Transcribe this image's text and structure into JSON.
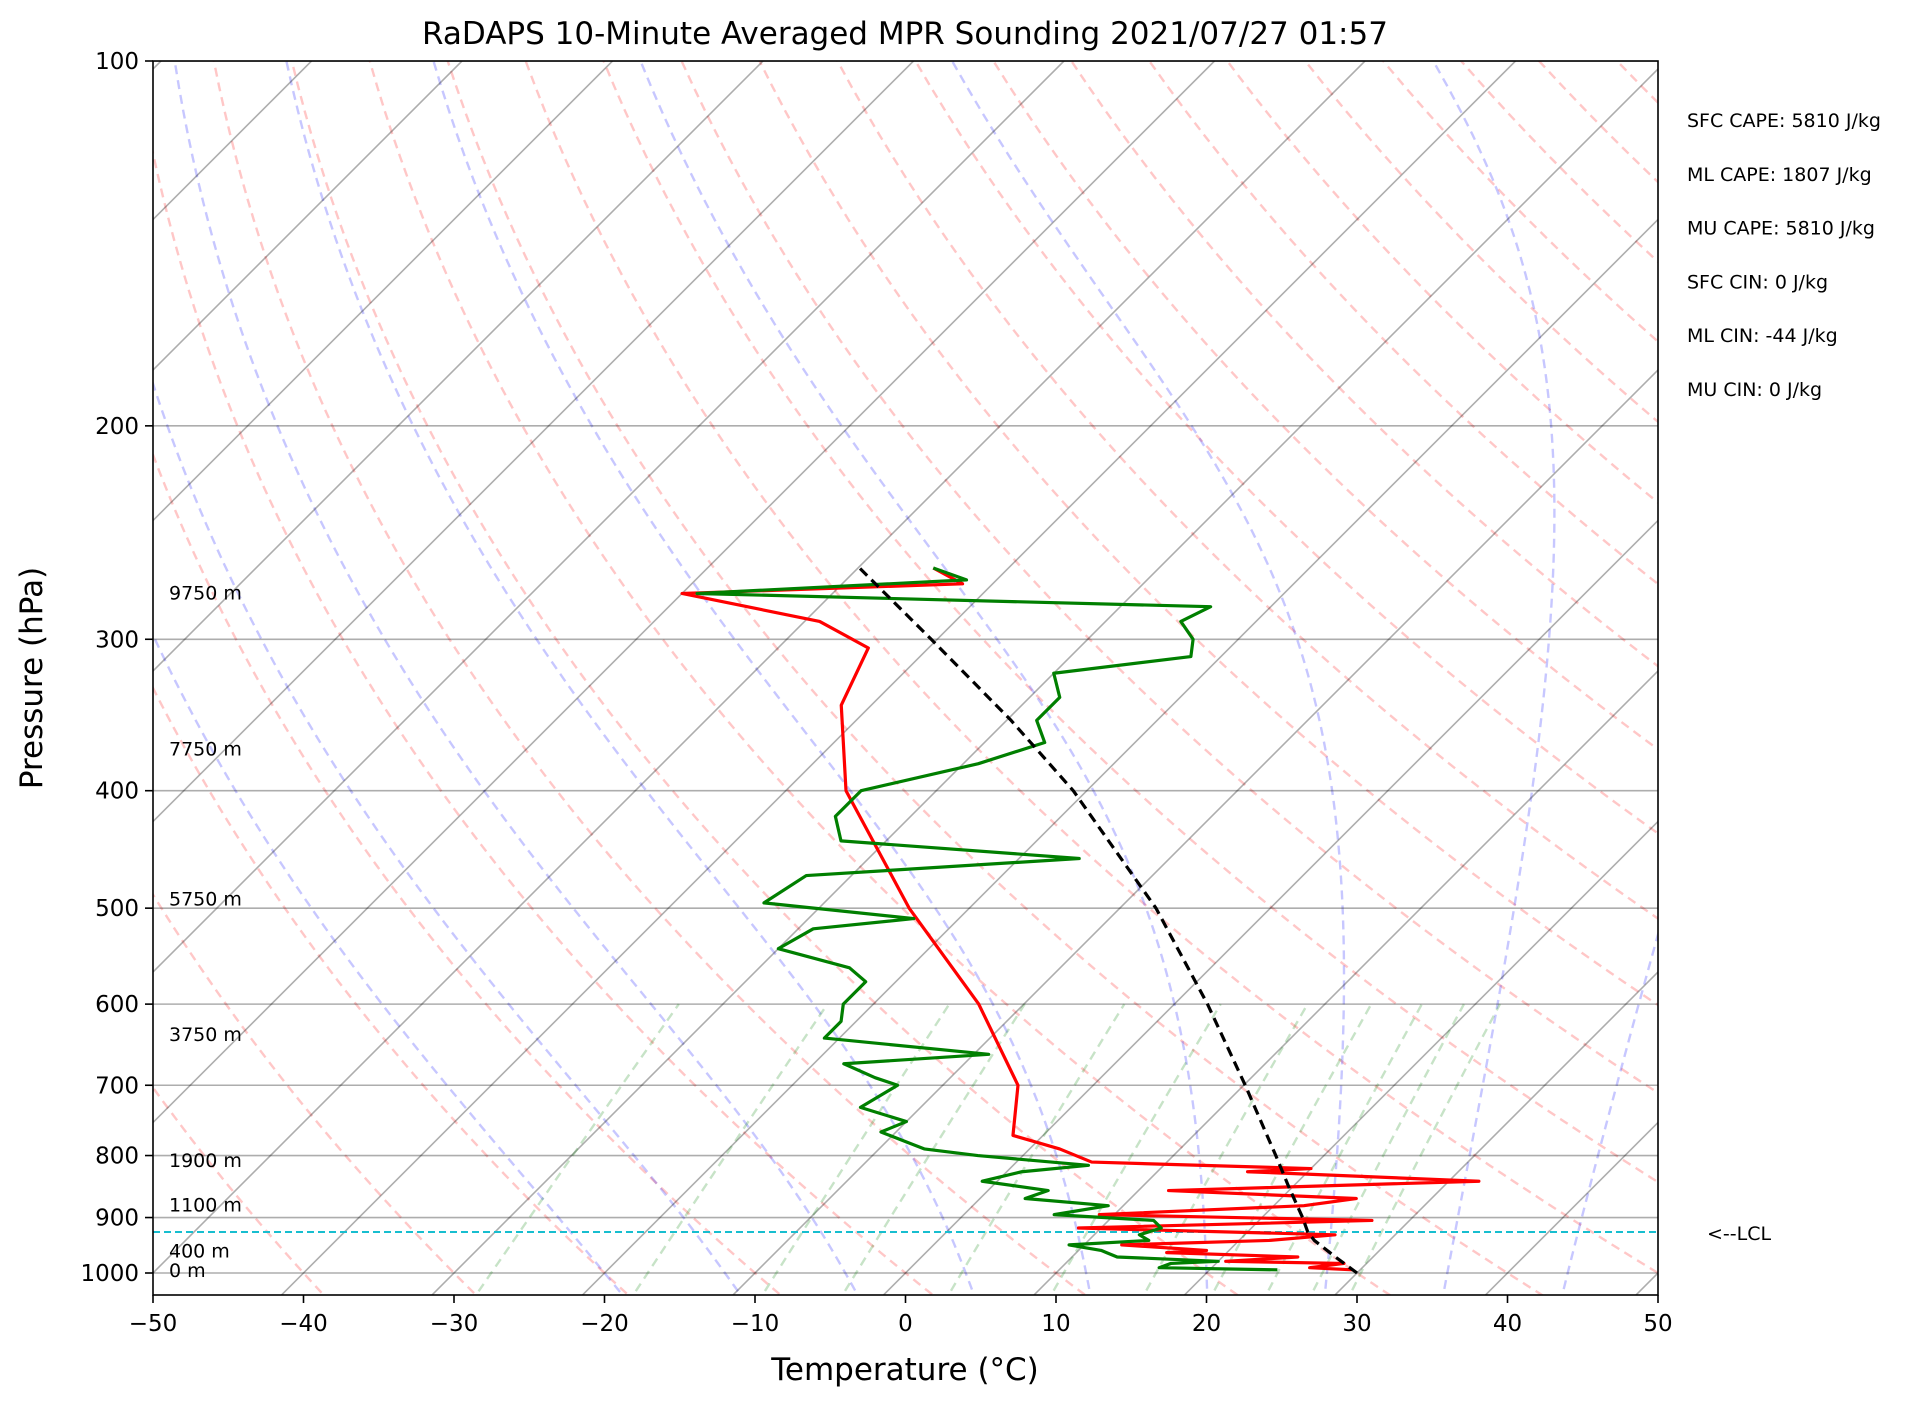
{
  "chart_data": {
    "type": "line",
    "title": "RaDAPS 10-Minute Averaged MPR Sounding 2021/07/27 01:57",
    "xlabel": "Temperature (°C)",
    "ylabel": "Pressure (hPa)",
    "xlim": [
      -50,
      50
    ],
    "ylim": [
      1050,
      100
    ],
    "y_scale": "log",
    "skew": "skewed temperature isotherms",
    "grid": true,
    "x_ticks": [
      -50,
      -40,
      -30,
      -20,
      -10,
      0,
      10,
      20,
      30,
      40,
      50
    ],
    "x_tick_labels": [
      "−50",
      "−40",
      "−30",
      "−20",
      "−10",
      "0",
      "10",
      "20",
      "30",
      "40",
      "50"
    ],
    "y_ticks": [
      1000,
      900,
      800,
      700,
      600,
      500,
      400,
      300,
      200,
      100
    ],
    "y_tick_labels": [
      "1000",
      "900",
      "800",
      "700",
      "600",
      "500",
      "400",
      "300",
      "200",
      "100"
    ],
    "height_labels": [
      {
        "text": "9750 m",
        "p": 275
      },
      {
        "text": "7750 m",
        "p": 370
      },
      {
        "text": "5750 m",
        "p": 492
      },
      {
        "text": "3750 m",
        "p": 636
      },
      {
        "text": "1900 m",
        "p": 808
      },
      {
        "text": "1100 m",
        "p": 880
      },
      {
        "text": "400 m",
        "p": 960
      },
      {
        "text": "0 m",
        "p": 996
      }
    ],
    "indices": [
      "SFC CAPE: 5810 J/kg",
      "ML CAPE: 1807 J/kg",
      "MU CAPE: 5810 J/kg",
      "SFC CIN: 0 J/kg",
      "ML CIN: -44 J/kg",
      "MU CIN: 0 J/kg"
    ],
    "lcl": {
      "label": "<--LCL",
      "p": 925
    },
    "series": [
      {
        "color": "#ff0000",
        "points": [
          [
            994,
            29.5
          ],
          [
            990,
            26.5
          ],
          [
            982,
            28.5
          ],
          [
            978,
            20.5
          ],
          [
            970,
            25.0
          ],
          [
            962,
            16.0
          ],
          [
            958,
            18.5
          ],
          [
            948,
            12.5
          ],
          [
            940,
            22.0
          ],
          [
            930,
            26.0
          ],
          [
            918,
            8.5
          ],
          [
            905,
            27.5
          ],
          [
            895,
            9.0
          ],
          [
            880,
            22.0
          ],
          [
            868,
            25.0
          ],
          [
            855,
            12.0
          ],
          [
            840,
            32.0
          ],
          [
            825,
            16.0
          ],
          [
            820,
            20.0
          ],
          [
            810,
            5.0
          ],
          [
            790,
            2.0
          ],
          [
            770,
            -2.0
          ],
          [
            700,
            -5.0
          ],
          [
            600,
            -13.0
          ],
          [
            500,
            -24.0
          ],
          [
            400,
            -36.0
          ],
          [
            340,
            -42.0
          ],
          [
            305,
            -44.0
          ],
          [
            290,
            -49.0
          ],
          [
            275,
            -60.0
          ],
          [
            270,
            -42.0
          ],
          [
            262,
            -45.0
          ]
        ]
      },
      {
        "color": "#007f00",
        "points": [
          [
            994,
            24.5
          ],
          [
            990,
            16.5
          ],
          [
            982,
            17.0
          ],
          [
            978,
            20.0
          ],
          [
            970,
            13.0
          ],
          [
            962,
            12.0
          ],
          [
            958,
            11.5
          ],
          [
            948,
            9.0
          ],
          [
            940,
            14.0
          ],
          [
            930,
            13.0
          ],
          [
            918,
            14.0
          ],
          [
            905,
            13.0
          ],
          [
            895,
            6.0
          ],
          [
            880,
            9.0
          ],
          [
            868,
            3.0
          ],
          [
            855,
            4.0
          ],
          [
            840,
            -1.0
          ],
          [
            825,
            1.0
          ],
          [
            815,
            5.0
          ],
          [
            800,
            -3.0
          ],
          [
            790,
            -7.0
          ],
          [
            765,
            -11.0
          ],
          [
            750,
            -10.0
          ],
          [
            730,
            -14.0
          ],
          [
            700,
            -13.0
          ],
          [
            690,
            -15.0
          ],
          [
            672,
            -18.0
          ],
          [
            660,
            -9.0
          ],
          [
            640,
            -21.0
          ],
          [
            620,
            -21.0
          ],
          [
            600,
            -22.0
          ],
          [
            575,
            -22.0
          ],
          [
            560,
            -24.0
          ],
          [
            540,
            -30.0
          ],
          [
            520,
            -29.0
          ],
          [
            510,
            -23.0
          ],
          [
            495,
            -34.0
          ],
          [
            470,
            -33.0
          ],
          [
            455,
            -16.0
          ],
          [
            440,
            -33.0
          ],
          [
            420,
            -35.0
          ],
          [
            400,
            -35.0
          ],
          [
            380,
            -29.0
          ],
          [
            365,
            -26.0
          ],
          [
            350,
            -28.0
          ],
          [
            335,
            -28.0
          ],
          [
            320,
            -30.0
          ],
          [
            310,
            -22.0
          ],
          [
            300,
            -23.0
          ],
          [
            290,
            -25.0
          ],
          [
            282,
            -24.0
          ],
          [
            275,
            -59.0
          ],
          [
            268,
            -42.0
          ],
          [
            262,
            -45.0
          ]
        ]
      },
      {
        "color": "#000000",
        "dashed": true,
        "points": [
          [
            1000,
            30.0
          ],
          [
            970,
            27.5
          ],
          [
            940,
            25.0
          ],
          [
            925,
            24.0
          ],
          [
            900,
            22.7
          ],
          [
            850,
            19.8
          ],
          [
            800,
            16.8
          ],
          [
            700,
            10.1
          ],
          [
            600,
            2.2
          ],
          [
            500,
            -7.6
          ],
          [
            400,
            -20.9
          ],
          [
            350,
            -29.7
          ],
          [
            300,
            -40.4
          ],
          [
            262,
            -49.9
          ]
        ]
      }
    ]
  }
}
